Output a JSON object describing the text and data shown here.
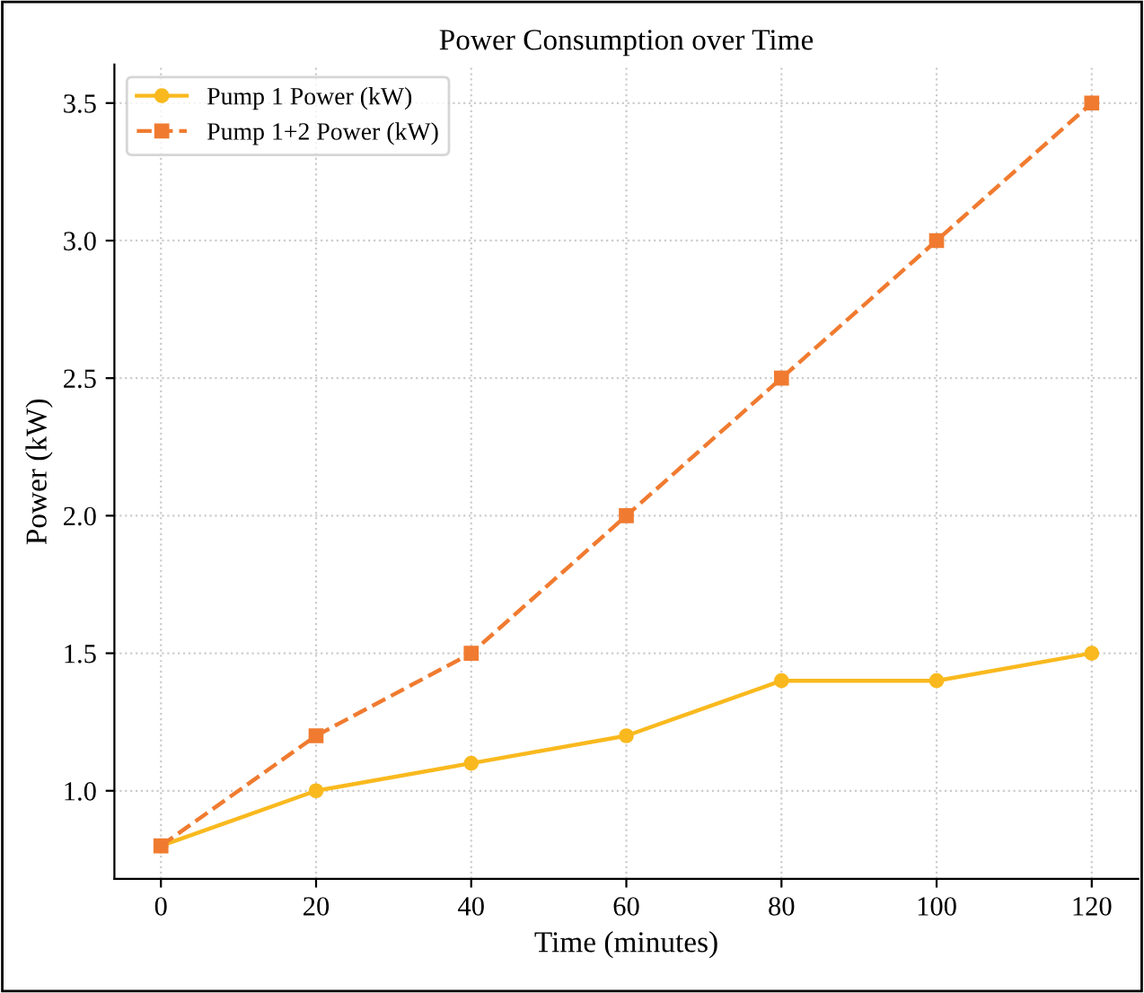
{
  "chart_data": {
    "type": "line",
    "title": "Power Consumption over Time",
    "xlabel": "Time (minutes)",
    "ylabel": "Power (kW)",
    "x": [
      0,
      20,
      40,
      60,
      80,
      100,
      120
    ],
    "series": [
      {
        "name": "Pump 1 Power (kW)",
        "color": "#f9b91e",
        "values": [
          0.8,
          1.0,
          1.1,
          1.2,
          1.4,
          1.4,
          1.5
        ],
        "marker": "circle",
        "line_style": "solid"
      },
      {
        "name": "Pump 1+2 Power (kW)",
        "color": "#f07b30",
        "values": [
          0.8,
          1.2,
          1.5,
          2.0,
          2.5,
          3.0,
          3.5
        ],
        "marker": "square",
        "line_style": "dashed"
      }
    ],
    "xlim": [
      -6,
      126
    ],
    "ylim": [
      0.68,
      3.64
    ],
    "xticks": [
      0,
      20,
      40,
      60,
      80,
      100,
      120
    ],
    "yticks": [
      {
        "value": 1.0,
        "label": "1.0"
      },
      {
        "value": 1.5,
        "label": "1.5"
      },
      {
        "value": 2.0,
        "label": "2.0"
      },
      {
        "value": 2.5,
        "label": "2.5"
      },
      {
        "value": 3.0,
        "label": "3.0"
      },
      {
        "value": 3.5,
        "label": "3.5"
      }
    ],
    "grid": true,
    "legend": "top left"
  }
}
